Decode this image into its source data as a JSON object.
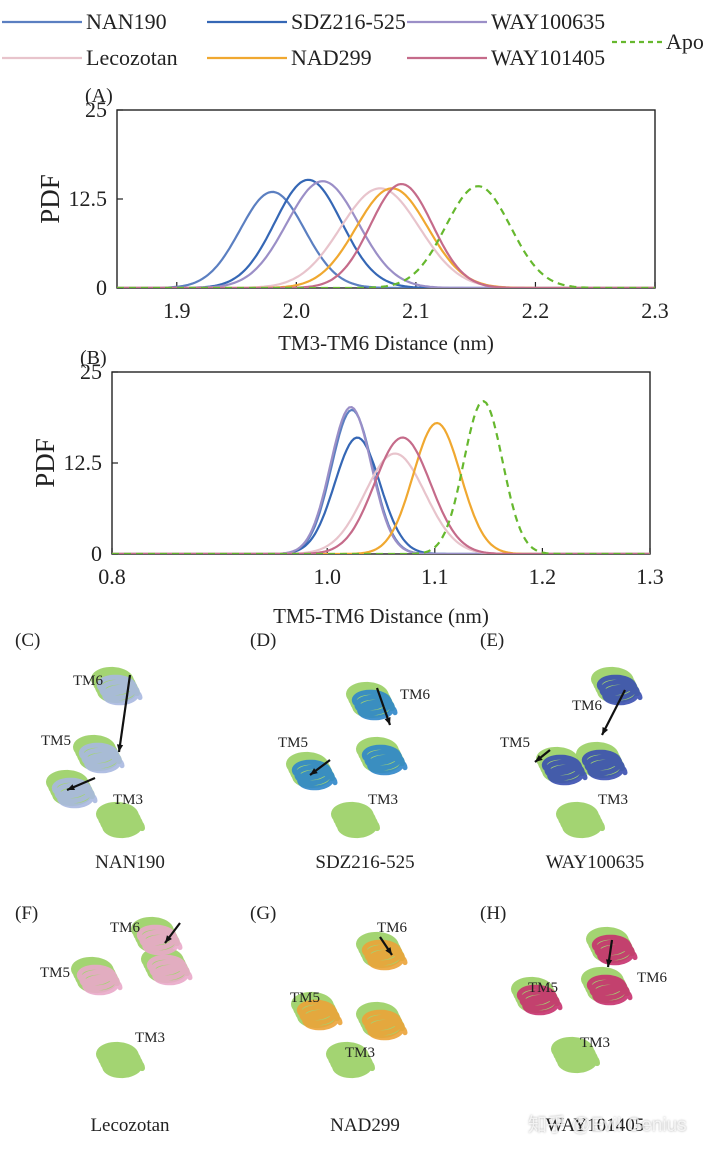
{
  "legend": [
    {
      "name": "NAN190",
      "color": "#5b7fc1",
      "dash": false
    },
    {
      "name": "SDZ216-525",
      "color": "#3567b5",
      "dash": false
    },
    {
      "name": "WAY100635",
      "color": "#9b8fc7",
      "dash": false
    },
    {
      "name": "Lecozotan",
      "color": "#e8c4cc",
      "dash": false
    },
    {
      "name": "NAD299",
      "color": "#f0a830",
      "dash": false
    },
    {
      "name": "WAY101405",
      "color": "#c56b8a",
      "dash": false
    },
    {
      "name": "Apo",
      "color": "#66b82e",
      "dash": true
    }
  ],
  "chart_data": [
    {
      "panel": "(A)",
      "type": "line",
      "title": "",
      "xlabel": "TM3-TM6 Distance (nm)",
      "ylabel": "PDF",
      "xlim": [
        1.85,
        2.3
      ],
      "ylim": [
        0,
        25
      ],
      "xticks": [
        "1.9",
        "2.0",
        "2.1",
        "2.2",
        "2.3"
      ],
      "yticks": [
        "0",
        "12.5",
        "25"
      ],
      "grid": false,
      "series": [
        {
          "name": "NAN190",
          "mean": 1.98,
          "sd": 0.027,
          "peak": 13.5
        },
        {
          "name": "SDZ216-525",
          "mean": 2.01,
          "sd": 0.028,
          "peak": 15.2
        },
        {
          "name": "WAY100635",
          "mean": 2.022,
          "sd": 0.03,
          "peak": 15.0
        },
        {
          "name": "Lecozotan",
          "mean": 2.07,
          "sd": 0.033,
          "peak": 14.0
        },
        {
          "name": "NAD299",
          "mean": 2.08,
          "sd": 0.03,
          "peak": 14.0
        },
        {
          "name": "WAY101405",
          "mean": 2.088,
          "sd": 0.026,
          "peak": 14.6
        },
        {
          "name": "Apo",
          "mean": 2.152,
          "sd": 0.027,
          "peak": 14.3
        }
      ]
    },
    {
      "panel": "(B)",
      "type": "line",
      "title": "",
      "xlabel": "TM5-TM6 Distance (nm)",
      "ylabel": "PDF",
      "xlim": [
        0.8,
        1.3
      ],
      "ylim": [
        0,
        25
      ],
      "xticks": [
        "0.8",
        "1.0",
        "1.1",
        "1.2",
        "1.3"
      ],
      "yticks": [
        "0",
        "12.5",
        "25"
      ],
      "grid": false,
      "series": [
        {
          "name": "NAN190",
          "mean": 1.023,
          "sd": 0.019,
          "peak": 19.8
        },
        {
          "name": "SDZ216-525",
          "mean": 1.028,
          "sd": 0.021,
          "peak": 16.0
        },
        {
          "name": "WAY100635",
          "mean": 1.022,
          "sd": 0.019,
          "peak": 20.2
        },
        {
          "name": "Lecozotan",
          "mean": 1.063,
          "sd": 0.028,
          "peak": 13.8
        },
        {
          "name": "NAD299",
          "mean": 1.102,
          "sd": 0.022,
          "peak": 18.0
        },
        {
          "name": "WAY101405",
          "mean": 1.07,
          "sd": 0.026,
          "peak": 16.0
        },
        {
          "name": "Apo",
          "mean": 1.145,
          "sd": 0.018,
          "peak": 21.0
        }
      ]
    }
  ],
  "structures": [
    {
      "label": "(C)",
      "caption": "NAN190",
      "ligand_color": "#a9b8e0",
      "tm": [
        "TM6",
        "TM5",
        "TM3"
      ]
    },
    {
      "label": "(D)",
      "caption": "SDZ216-525",
      "ligand_color": "#2f86c9",
      "tm": [
        "TM6",
        "TM5",
        "TM3"
      ]
    },
    {
      "label": "(E)",
      "caption": "WAY100635",
      "ligand_color": "#3a4fb0",
      "tm": [
        "TM6",
        "TM5",
        "TM3"
      ]
    },
    {
      "label": "(F)",
      "caption": "Lecozotan",
      "ligand_color": "#e9a9c9",
      "tm": [
        "TM6",
        "TM5",
        "TM3"
      ]
    },
    {
      "label": "(G)",
      "caption": "NAD299",
      "ligand_color": "#eba338",
      "tm": [
        "TM6",
        "TM5",
        "TM3"
      ]
    },
    {
      "label": "(H)",
      "caption": "WAY101405",
      "ligand_color": "#c7316e",
      "tm": [
        "TM5",
        "TM6",
        "TM3"
      ]
    }
  ],
  "apo_color": "#9ed26a",
  "watermark": "知乎 @Evil Genius"
}
